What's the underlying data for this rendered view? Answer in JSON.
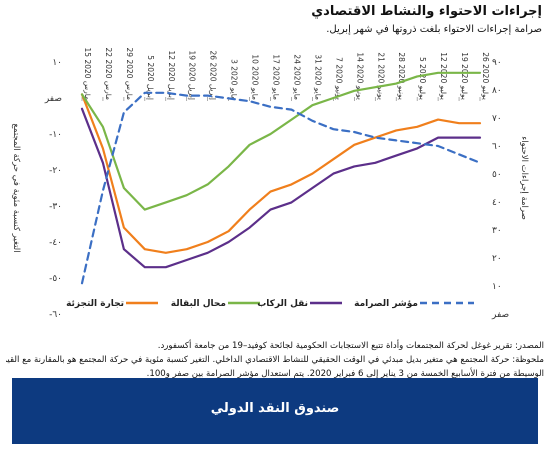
{
  "header": {
    "title": "إجراءات الاحتواء والنشاط الاقتصادي",
    "subtitle": "صرامة إجراءات الاحتواء بلغت ذروتها في شهر إبريل."
  },
  "notes": {
    "source": "المصدر: تقرير غوغل لحركة المجتمعات وأداة تتبع الاستجابات الحكومية لجائحة كوفيد–19 من جامعة أكسفورد.",
    "line2": "ملحوظة: حركة المجتمع هي متغير بديل مبدئي في الوقت الحقيقي للنشاط الاقتصادي الداخلي. التغير كنسبة مئوية في حركة المجتمع هو بالمقارنة مع القيمة",
    "line3": "الوسيطة من فترة الأسابيع الخمسة من 3 يناير إلى 6 فبراير 2020. يتم استعدال مؤشر الصرامة بين صفر و100."
  },
  "footer": {
    "label": "صندوق النقد الدولي"
  },
  "colors": {
    "retail": "#f07f1c",
    "grocery": "#7ab648",
    "transit": "#5c2f8a",
    "stringency": "#3b6fc4"
  },
  "chart_data": {
    "type": "line",
    "x": [
      "15 مارس 2020",
      "22 مارس 2020",
      "29 مارس 2020",
      "5 إبريل 2020",
      "12 إبريل 2020",
      "19 إبريل 2020",
      "26 إبريل 2020",
      "3 مايو 2020",
      "10 مايو 2020",
      "17 مايو 2020",
      "24 مايو 2020",
      "31 مايو 2020",
      "7 يونيو 2020",
      "14 يونيو 2020",
      "21 يونيو 2020",
      "28 يونيو 2020",
      "5 يوليو 2020",
      "12 يوليو 2020",
      "19 يوليو 2020",
      "26 يوليو 2020"
    ],
    "left_axis": {
      "ylabel": "التغير كنسبة مئوية في حركة المجتمع",
      "ylim": [
        -60,
        10
      ],
      "ticks": [
        10,
        0,
        -10,
        -20,
        -30,
        -40,
        -50,
        -60
      ],
      "tick_labels": [
        "١٠",
        "صفر",
        "-١٠",
        "-٢٠",
        "-٣٠",
        "-٤٠",
        "-٥٠",
        "-٦٠"
      ]
    },
    "right_axis": {
      "ylabel": "صرامة إجراءات الاحتواء",
      "ylim": [
        0,
        90
      ],
      "ticks": [
        90,
        80,
        70,
        60,
        50,
        40,
        30,
        20,
        10,
        0
      ],
      "tick_labels": [
        "٩٠",
        "٨٠",
        "٧٠",
        "٦٠",
        "٥٠",
        "٤٠",
        "٣٠",
        "٢٠",
        "١٠",
        "صفر"
      ]
    },
    "legend_position": "bottom",
    "series": [
      {
        "name": "تجارة التجزئة",
        "axis": "left",
        "style": "solid",
        "color": "#f07f1c",
        "values": [
          1,
          -14,
          -36,
          -42,
          -43,
          -42,
          -40,
          -37,
          -31,
          -26,
          -24,
          -21,
          -17,
          -13,
          -11,
          -9,
          -8,
          -6,
          -7,
          -7
        ]
      },
      {
        "name": "محال البقالة",
        "axis": "left",
        "style": "solid",
        "color": "#7ab648",
        "values": [
          1,
          -8,
          -25,
          -31,
          -29,
          -27,
          -24,
          -19,
          -13,
          -10,
          -6,
          -2,
          0,
          2,
          3,
          4,
          6,
          7,
          7,
          7
        ]
      },
      {
        "name": "نقل الركاب",
        "axis": "left",
        "style": "solid",
        "color": "#5c2f8a",
        "values": [
          -3,
          -18,
          -42,
          -47,
          -47,
          -45,
          -43,
          -40,
          -36,
          -31,
          -29,
          -25,
          -21,
          -19,
          -18,
          -16,
          -14,
          -11,
          -11,
          -11
        ]
      },
      {
        "name": "مؤشر الصرامة",
        "axis": "right",
        "style": "dashed",
        "color": "#3b6fc4",
        "values": [
          11,
          44,
          72,
          79,
          79,
          78,
          78,
          77,
          76,
          74,
          73,
          69,
          66,
          65,
          63,
          62,
          61,
          60,
          57,
          54
        ]
      }
    ]
  }
}
